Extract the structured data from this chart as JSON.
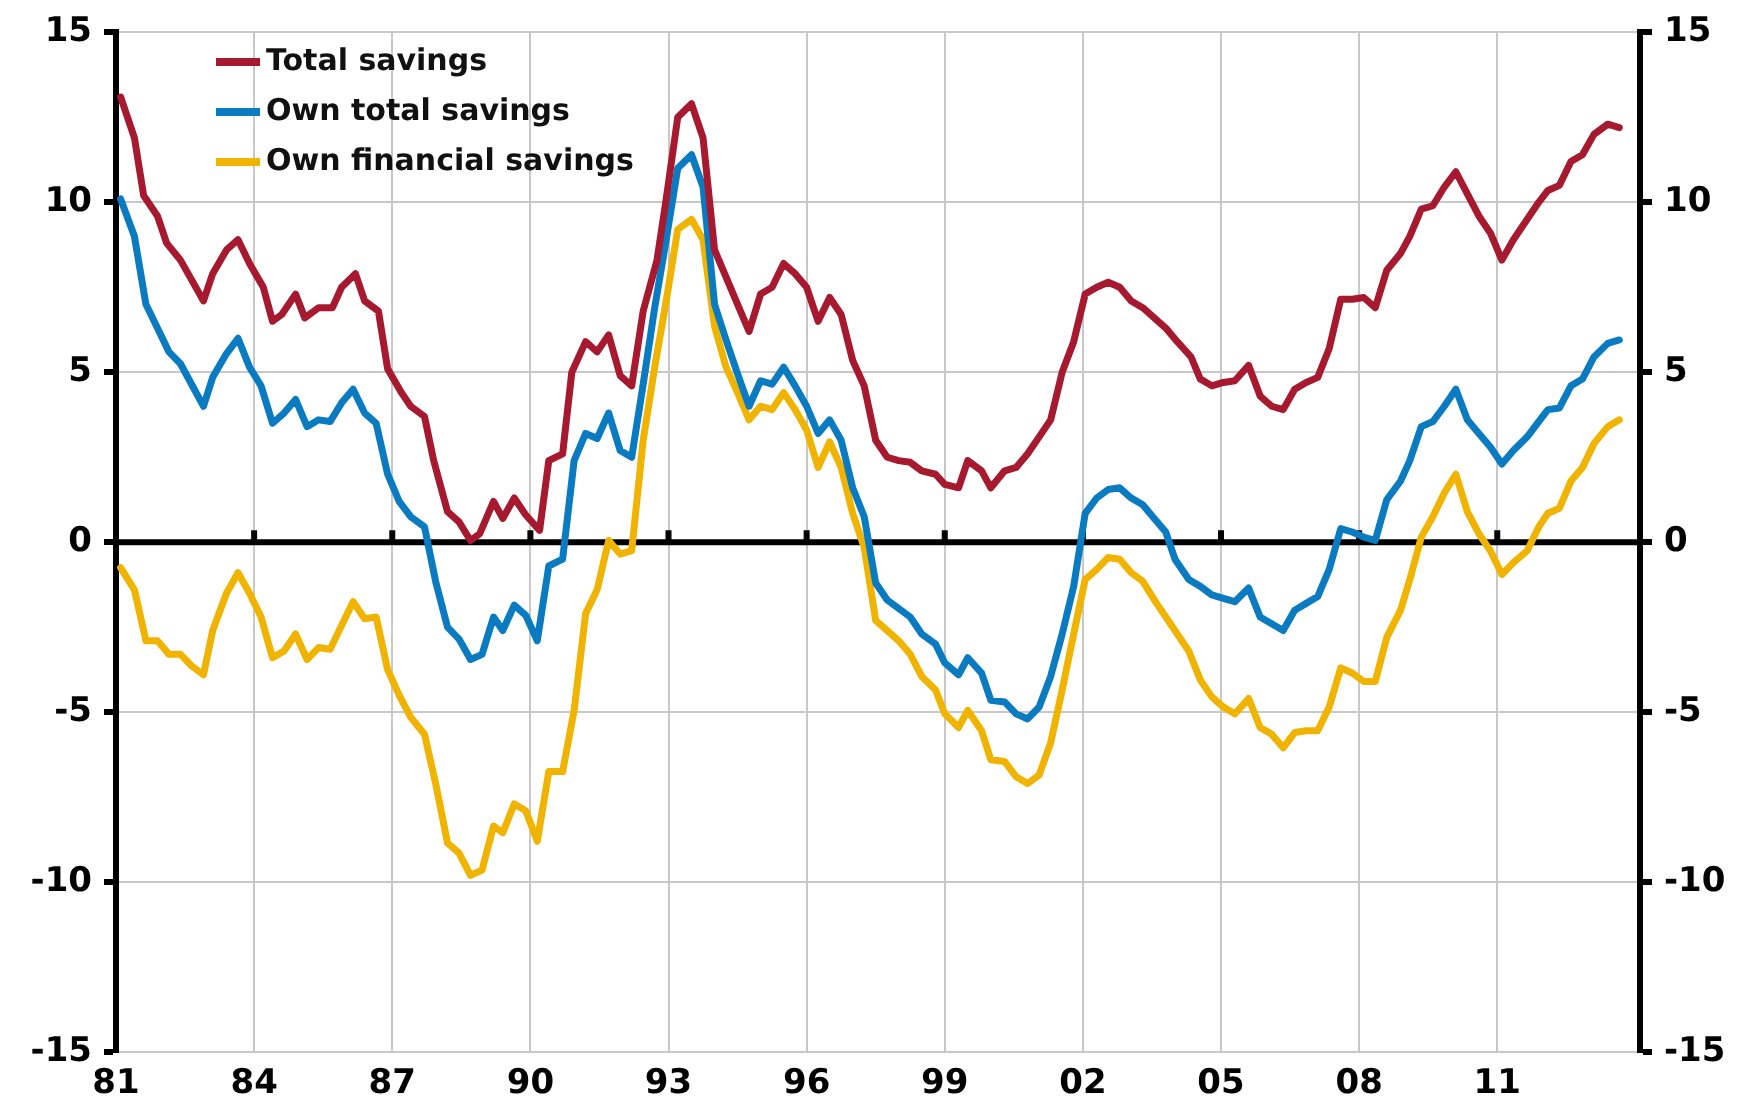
{
  "chart_data": {
    "type": "line",
    "xlim": [
      1981,
      2014.1
    ],
    "xticks": [
      {
        "value": 1981,
        "label": "81"
      },
      {
        "value": 1984,
        "label": "84"
      },
      {
        "value": 1987,
        "label": "87"
      },
      {
        "value": 1990,
        "label": "90"
      },
      {
        "value": 1993,
        "label": "93"
      },
      {
        "value": 1996,
        "label": "96"
      },
      {
        "value": 1999,
        "label": "99"
      },
      {
        "value": 2002,
        "label": "02"
      },
      {
        "value": 2005,
        "label": "05"
      },
      {
        "value": 2008,
        "label": "08"
      },
      {
        "value": 2011,
        "label": "11"
      }
    ],
    "ylim": [
      -15,
      15
    ],
    "yticks": [
      -15,
      -10,
      -5,
      0,
      5,
      10,
      15
    ],
    "y2lim": [
      -15,
      15
    ],
    "y2ticks": [
      -15,
      -10,
      -5,
      0,
      5,
      10,
      15
    ],
    "grid": true,
    "legend": "top left",
    "ref_lines": [
      {
        "axis": "y",
        "value": 0,
        "color": "#000000"
      }
    ],
    "series": [
      {
        "name": "Total savings",
        "color": "#a6192e",
        "x": [
          1981.1,
          1981.4,
          1981.6,
          1981.9,
          1982.1,
          1982.4,
          1982.9,
          1983.1,
          1983.4,
          1983.65,
          1983.9,
          1984.2,
          1984.4,
          1984.6,
          1984.9,
          1985.1,
          1985.4,
          1985.7,
          1985.9,
          1986.2,
          1986.4,
          1986.7,
          1986.9,
          1987.2,
          1987.4,
          1987.7,
          1987.9,
          1988.2,
          1988.45,
          1988.7,
          1988.9,
          1989.2,
          1989.4,
          1989.65,
          1989.9,
          1990.2,
          1990.4,
          1990.7,
          1990.9,
          1991.2,
          1991.45,
          1991.7,
          1991.95,
          1992.2,
          1992.45,
          1992.75,
          1992.95,
          1993.2,
          1993.5,
          1993.75,
          1994.0,
          1994.25,
          1994.5,
          1994.75,
          1995.0,
          1995.25,
          1995.5,
          1995.75,
          1996.0,
          1996.25,
          1996.5,
          1996.75,
          1997.0,
          1997.25,
          1997.5,
          1997.75,
          1998.0,
          1998.25,
          1998.5,
          1998.8,
          1999.0,
          1999.3,
          1999.5,
          1999.8,
          2000.0,
          2000.3,
          2000.55,
          2000.8,
          2001.05,
          2001.3,
          2001.55,
          2001.8,
          2002.05,
          2002.3,
          2002.55,
          2002.8,
          2003.05,
          2003.3,
          2003.55,
          2003.8,
          2004.05,
          2004.35,
          2004.55,
          2004.8,
          2005.05,
          2005.3,
          2005.6,
          2005.85,
          2006.1,
          2006.35,
          2006.6,
          2006.85,
          2007.1,
          2007.35,
          2007.6,
          2007.85,
          2008.1,
          2008.35,
          2008.6,
          2008.9,
          2009.1,
          2009.35,
          2009.6,
          2009.85,
          2010.1,
          2010.35,
          2010.6,
          2010.85,
          2011.1,
          2011.35,
          2011.65,
          2011.9,
          2012.1,
          2012.35,
          2012.6,
          2012.85,
          2013.1,
          2013.4,
          2013.65
        ],
        "values": [
          13.1,
          11.9,
          10.2,
          9.6,
          8.8,
          8.3,
          7.1,
          7.9,
          8.6,
          8.9,
          8.2,
          7.5,
          6.5,
          6.7,
          7.3,
          6.6,
          6.9,
          6.9,
          7.5,
          7.9,
          7.1,
          6.8,
          5.1,
          4.4,
          4.0,
          3.7,
          2.4,
          0.9,
          0.6,
          0.05,
          0.25,
          1.2,
          0.7,
          1.3,
          0.8,
          0.35,
          2.4,
          2.6,
          5.0,
          5.9,
          5.6,
          6.1,
          4.9,
          4.6,
          6.8,
          8.3,
          10.1,
          12.5,
          12.9,
          11.9,
          8.6,
          7.8,
          7.0,
          6.2,
          7.3,
          7.5,
          8.2,
          7.9,
          7.5,
          6.5,
          7.2,
          6.7,
          5.35,
          4.6,
          3.0,
          2.5,
          2.4,
          2.35,
          2.1,
          2.0,
          1.7,
          1.6,
          2.4,
          2.1,
          1.6,
          2.1,
          2.2,
          2.6,
          3.1,
          3.6,
          5.0,
          5.9,
          7.3,
          7.5,
          7.65,
          7.5,
          7.1,
          6.9,
          6.6,
          6.3,
          5.9,
          5.45,
          4.8,
          4.6,
          4.7,
          4.75,
          5.2,
          4.3,
          4.0,
          3.9,
          4.5,
          4.7,
          4.85,
          5.7,
          7.15,
          7.15,
          7.2,
          6.9,
          8.0,
          8.5,
          9.0,
          9.8,
          9.9,
          10.45,
          10.9,
          10.25,
          9.6,
          9.1,
          8.3,
          8.9,
          9.5,
          10.0,
          10.35,
          10.5,
          11.2,
          11.4,
          12.0,
          12.3,
          12.2
        ]
      },
      {
        "name": "Own total savings",
        "color": "#0a7bc1",
        "x": [
          1981.1,
          1981.4,
          1981.65,
          1981.9,
          1982.15,
          1982.4,
          1982.9,
          1983.1,
          1983.4,
          1983.65,
          1983.9,
          1984.15,
          1984.4,
          1984.65,
          1984.9,
          1985.15,
          1985.4,
          1985.65,
          1985.9,
          1986.15,
          1986.4,
          1986.65,
          1986.9,
          1987.15,
          1987.4,
          1987.7,
          1987.95,
          1988.2,
          1988.45,
          1988.7,
          1988.95,
          1989.2,
          1989.4,
          1989.65,
          1989.9,
          1990.15,
          1990.4,
          1990.7,
          1990.95,
          1991.2,
          1991.45,
          1991.7,
          1991.95,
          1992.2,
          1992.45,
          1992.7,
          1992.95,
          1993.2,
          1993.5,
          1993.75,
          1994.0,
          1994.25,
          1994.5,
          1994.75,
          1995.0,
          1995.25,
          1995.5,
          1995.75,
          1996.0,
          1996.25,
          1996.5,
          1996.75,
          1997.0,
          1997.25,
          1997.5,
          1997.75,
          1998.0,
          1998.25,
          1998.5,
          1998.8,
          1999.0,
          1999.3,
          1999.5,
          1999.8,
          2000.0,
          2000.3,
          2000.55,
          2000.8,
          2001.05,
          2001.3,
          2001.55,
          2001.8,
          2002.05,
          2002.3,
          2002.55,
          2002.8,
          2003.05,
          2003.3,
          2003.55,
          2003.8,
          2004.0,
          2004.3,
          2004.55,
          2004.8,
          2005.05,
          2005.3,
          2005.6,
          2005.85,
          2006.1,
          2006.35,
          2006.6,
          2006.85,
          2007.1,
          2007.35,
          2007.6,
          2007.85,
          2008.1,
          2008.35,
          2008.6,
          2008.9,
          2009.1,
          2009.35,
          2009.6,
          2009.85,
          2010.1,
          2010.35,
          2010.6,
          2010.85,
          2011.1,
          2011.35,
          2011.65,
          2011.9,
          2012.1,
          2012.35,
          2012.6,
          2012.85,
          2013.1,
          2013.4,
          2013.65
        ],
        "values": [
          10.1,
          9.0,
          7.0,
          6.3,
          5.6,
          5.25,
          4.0,
          4.85,
          5.55,
          6.0,
          5.15,
          4.6,
          3.5,
          3.8,
          4.2,
          3.4,
          3.6,
          3.55,
          4.1,
          4.5,
          3.8,
          3.5,
          2.0,
          1.2,
          0.75,
          0.45,
          -1.2,
          -2.5,
          -2.85,
          -3.45,
          -3.3,
          -2.2,
          -2.6,
          -1.85,
          -2.15,
          -2.9,
          -0.7,
          -0.5,
          2.4,
          3.2,
          3.05,
          3.8,
          2.7,
          2.5,
          4.65,
          6.9,
          8.9,
          11.0,
          11.4,
          10.45,
          7.0,
          5.95,
          4.95,
          4.0,
          4.75,
          4.65,
          5.15,
          4.6,
          4.0,
          3.2,
          3.6,
          3.0,
          1.6,
          0.75,
          -1.2,
          -1.7,
          -1.95,
          -2.2,
          -2.7,
          -3.0,
          -3.55,
          -3.9,
          -3.4,
          -3.85,
          -4.65,
          -4.7,
          -5.05,
          -5.2,
          -4.85,
          -3.95,
          -2.7,
          -1.3,
          0.85,
          1.3,
          1.55,
          1.6,
          1.3,
          1.1,
          0.7,
          0.3,
          -0.5,
          -1.1,
          -1.3,
          -1.55,
          -1.65,
          -1.75,
          -1.35,
          -2.2,
          -2.4,
          -2.6,
          -2.0,
          -1.8,
          -1.6,
          -0.8,
          0.4,
          0.3,
          0.15,
          0.05,
          1.25,
          1.8,
          2.4,
          3.4,
          3.55,
          4.0,
          4.5,
          3.6,
          3.2,
          2.8,
          2.3,
          2.7,
          3.1,
          3.55,
          3.9,
          3.95,
          4.6,
          4.8,
          5.45,
          5.85,
          5.95
        ]
      },
      {
        "name": "Own financial savings",
        "color": "#f0b400",
        "x": [
          1981.1,
          1981.4,
          1981.65,
          1981.9,
          1982.15,
          1982.4,
          1982.65,
          1982.9,
          1983.1,
          1983.4,
          1983.65,
          1983.9,
          1984.15,
          1984.4,
          1984.65,
          1984.9,
          1985.15,
          1985.4,
          1985.65,
          1985.9,
          1986.15,
          1986.4,
          1986.65,
          1986.9,
          1987.15,
          1987.4,
          1987.7,
          1987.95,
          1988.2,
          1988.45,
          1988.7,
          1988.95,
          1989.2,
          1989.4,
          1989.65,
          1989.9,
          1990.15,
          1990.4,
          1990.7,
          1990.95,
          1991.2,
          1991.45,
          1991.7,
          1991.95,
          1992.2,
          1992.45,
          1992.7,
          1992.95,
          1993.2,
          1993.5,
          1993.75,
          1994.0,
          1994.25,
          1994.5,
          1994.75,
          1995.0,
          1995.25,
          1995.5,
          1995.75,
          1996.0,
          1996.25,
          1996.5,
          1996.75,
          1997.0,
          1997.25,
          1997.5,
          1997.75,
          1998.0,
          1998.25,
          1998.5,
          1998.8,
          1999.0,
          1999.3,
          1999.5,
          1999.8,
          2000.0,
          2000.3,
          2000.55,
          2000.8,
          2001.05,
          2001.3,
          2001.55,
          2001.8,
          2002.05,
          2002.3,
          2002.55,
          2002.8,
          2003.05,
          2003.3,
          2003.6,
          2003.9,
          2004.3,
          2004.55,
          2004.8,
          2005.05,
          2005.3,
          2005.6,
          2005.85,
          2006.1,
          2006.35,
          2006.6,
          2006.85,
          2007.1,
          2007.35,
          2007.6,
          2007.85,
          2008.1,
          2008.35,
          2008.6,
          2008.9,
          2009.1,
          2009.35,
          2009.6,
          2009.85,
          2010.1,
          2010.35,
          2010.6,
          2010.85,
          2011.1,
          2011.35,
          2011.65,
          2011.9,
          2012.1,
          2012.35,
          2012.6,
          2012.85,
          2013.1,
          2013.4,
          2013.65
        ],
        "values": [
          -0.75,
          -1.4,
          -2.9,
          -2.9,
          -3.3,
          -3.3,
          -3.65,
          -3.9,
          -2.6,
          -1.5,
          -0.9,
          -1.5,
          -2.2,
          -3.4,
          -3.2,
          -2.7,
          -3.45,
          -3.1,
          -3.15,
          -2.45,
          -1.75,
          -2.25,
          -2.2,
          -3.75,
          -4.5,
          -5.15,
          -5.65,
          -7.15,
          -8.85,
          -9.15,
          -9.8,
          -9.65,
          -8.35,
          -8.55,
          -7.7,
          -7.9,
          -8.8,
          -6.75,
          -6.75,
          -4.95,
          -2.1,
          -1.4,
          0.05,
          -0.35,
          -0.25,
          3.0,
          5.15,
          7.1,
          9.2,
          9.5,
          8.9,
          6.35,
          5.15,
          4.4,
          3.6,
          4.0,
          3.9,
          4.4,
          3.9,
          3.3,
          2.2,
          2.95,
          2.2,
          0.85,
          -0.15,
          -2.3,
          -2.6,
          -2.9,
          -3.3,
          -3.95,
          -4.35,
          -5.05,
          -5.45,
          -4.95,
          -5.55,
          -6.4,
          -6.45,
          -6.9,
          -7.1,
          -6.85,
          -5.9,
          -4.35,
          -2.7,
          -1.1,
          -0.8,
          -0.45,
          -0.5,
          -0.9,
          -1.15,
          -1.8,
          -2.4,
          -3.2,
          -4.05,
          -4.55,
          -4.85,
          -5.05,
          -4.6,
          -5.45,
          -5.65,
          -6.05,
          -5.6,
          -5.55,
          -5.55,
          -4.85,
          -3.7,
          -3.85,
          -4.1,
          -4.1,
          -2.8,
          -2.0,
          -1.1,
          0.15,
          0.75,
          1.45,
          2.0,
          0.9,
          0.25,
          -0.25,
          -0.95,
          -0.6,
          -0.25,
          0.45,
          0.85,
          1.0,
          1.8,
          2.2,
          2.9,
          3.4,
          3.6
        ]
      }
    ]
  }
}
